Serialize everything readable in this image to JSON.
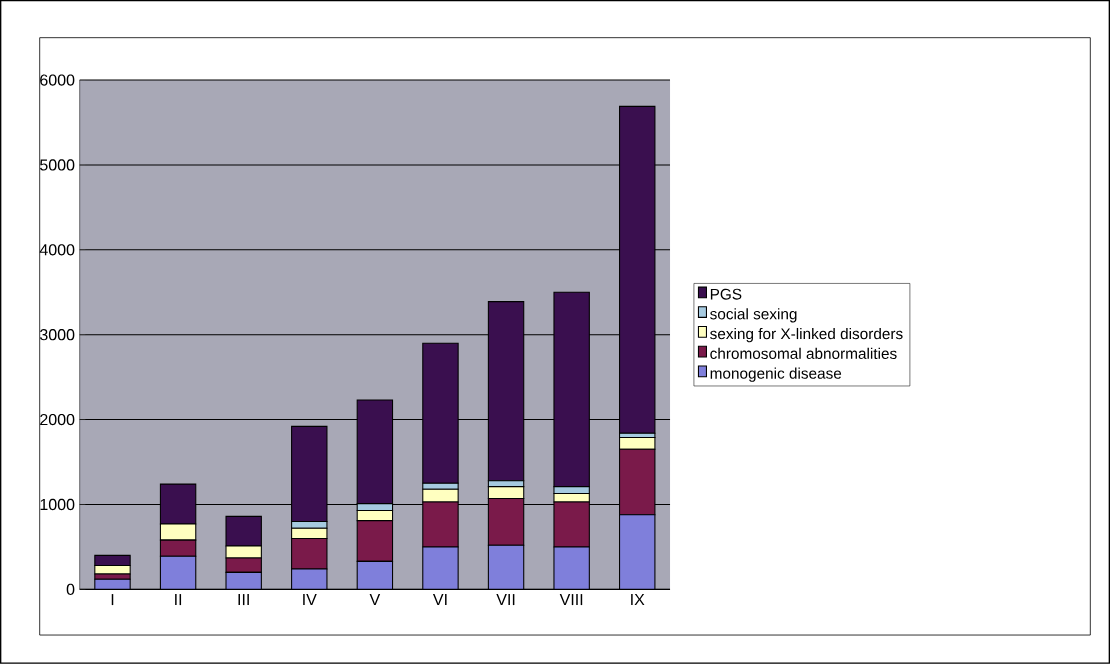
{
  "chart_data": {
    "type": "bar",
    "stacked": true,
    "categories": [
      "I",
      "II",
      "III",
      "IV",
      "V",
      "VI",
      "VII",
      "VIII",
      "IX"
    ],
    "series": [
      {
        "name": "monogenic disease",
        "color": "#7f7fdb",
        "values": [
          120,
          390,
          200,
          240,
          330,
          500,
          520,
          500,
          880
        ]
      },
      {
        "name": "chromosomal abnormalities",
        "color": "#7a1a4a",
        "values": [
          60,
          190,
          170,
          360,
          480,
          530,
          550,
          530,
          770
        ]
      },
      {
        "name": "sexing for X-linked disorders",
        "color": "#ffffc0",
        "values": [
          100,
          190,
          140,
          120,
          120,
          150,
          140,
          100,
          140
        ]
      },
      {
        "name": "social sexing",
        "color": "#a6cae0",
        "values": [
          0,
          0,
          0,
          80,
          80,
          70,
          70,
          80,
          50
        ]
      },
      {
        "name": "PGS",
        "color": "#3a0f4f",
        "values": [
          120,
          470,
          350,
          1120,
          1220,
          1650,
          2110,
          2290,
          3850
        ]
      }
    ],
    "ylim": [
      0,
      6000
    ],
    "yticks": [
      0,
      1000,
      2000,
      3000,
      4000,
      5000,
      6000
    ],
    "grid": "y",
    "legend": "right"
  }
}
